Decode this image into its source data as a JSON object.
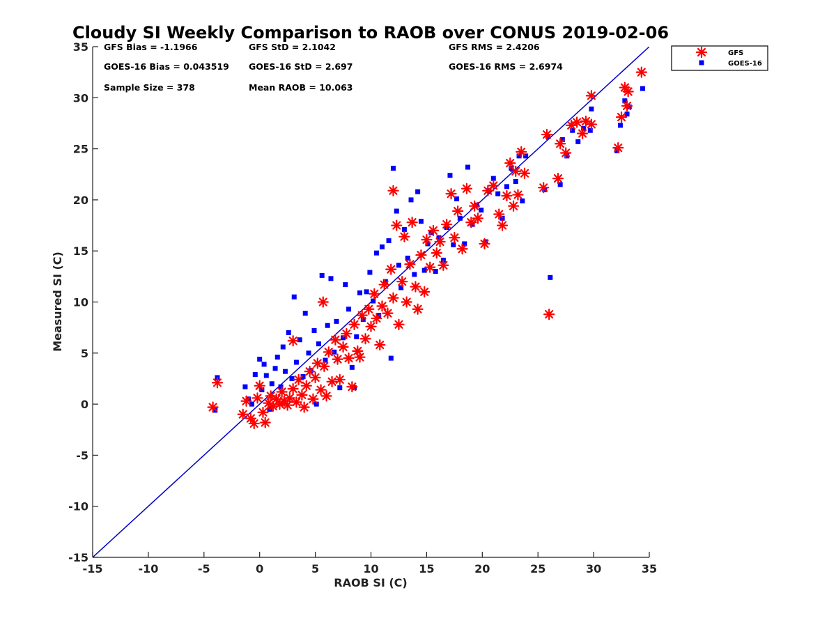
{
  "chart_data": {
    "type": "scatter",
    "title": "Cloudy SI Weekly Comparison to RAOB over CONUS 2019-02-06",
    "xlabel": "RAOB SI (C)",
    "ylabel": "Measured SI (C)",
    "xlim": [
      -15,
      35
    ],
    "ylim": [
      -15,
      35
    ],
    "xticks": [
      -15,
      -10,
      -5,
      0,
      5,
      10,
      15,
      20,
      25,
      30,
      35
    ],
    "yticks": [
      -15,
      -10,
      -5,
      0,
      5,
      10,
      15,
      20,
      25,
      30,
      35
    ],
    "grid": false,
    "legend_position": "outside-top-right",
    "reference_line": {
      "x": [
        -15,
        35
      ],
      "y": [
        -15,
        35
      ],
      "color": "#0000cc"
    },
    "stats": [
      "GFS Bias = -1.1966",
      "GFS StD = 2.1042",
      "GFS RMS = 2.4206",
      "GOES-16 Bias = 0.043519",
      "GOES-16 StD = 2.697",
      "GOES-16 RMS = 2.6974",
      "Sample Size = 378",
      "Mean RAOB = 10.063"
    ],
    "series": [
      {
        "name": "GFS",
        "color": "#ff0000",
        "marker": "asterisk",
        "points": [
          [
            -4.2,
            -0.3
          ],
          [
            -3.8,
            2.1
          ],
          [
            -1.5,
            -1.0
          ],
          [
            -1.2,
            0.3
          ],
          [
            -0.8,
            -1.4
          ],
          [
            -0.5,
            -1.9
          ],
          [
            -0.2,
            0.6
          ],
          [
            0.0,
            1.8
          ],
          [
            0.3,
            -0.8
          ],
          [
            0.5,
            -1.8
          ],
          [
            0.8,
            0.1
          ],
          [
            1.0,
            0.8
          ],
          [
            1.2,
            -0.2
          ],
          [
            1.5,
            0.5
          ],
          [
            1.8,
            0.0
          ],
          [
            2.0,
            1.2
          ],
          [
            2.2,
            0.3
          ],
          [
            2.5,
            -0.1
          ],
          [
            2.7,
            0.6
          ],
          [
            3.0,
            1.5
          ],
          [
            3.0,
            6.2
          ],
          [
            3.3,
            0.2
          ],
          [
            3.5,
            2.4
          ],
          [
            3.8,
            0.9
          ],
          [
            4.0,
            -0.3
          ],
          [
            4.2,
            1.8
          ],
          [
            4.5,
            3.2
          ],
          [
            4.8,
            0.5
          ],
          [
            5.0,
            2.6
          ],
          [
            5.2,
            4.0
          ],
          [
            5.5,
            1.4
          ],
          [
            5.7,
            10.0
          ],
          [
            5.8,
            3.7
          ],
          [
            6.0,
            0.8
          ],
          [
            6.2,
            5.1
          ],
          [
            6.5,
            2.2
          ],
          [
            6.8,
            6.3
          ],
          [
            7.0,
            4.4
          ],
          [
            7.2,
            2.4
          ],
          [
            7.5,
            5.6
          ],
          [
            7.8,
            6.9
          ],
          [
            8.0,
            4.5
          ],
          [
            8.3,
            1.7
          ],
          [
            8.5,
            7.8
          ],
          [
            8.8,
            5.2
          ],
          [
            9.0,
            4.6
          ],
          [
            9.2,
            8.7
          ],
          [
            9.5,
            6.4
          ],
          [
            9.8,
            9.3
          ],
          [
            10.0,
            7.6
          ],
          [
            10.3,
            10.8
          ],
          [
            10.5,
            8.4
          ],
          [
            10.8,
            5.8
          ],
          [
            11.0,
            9.6
          ],
          [
            11.2,
            11.7
          ],
          [
            11.5,
            8.9
          ],
          [
            11.8,
            13.2
          ],
          [
            12.0,
            20.9
          ],
          [
            12.0,
            10.4
          ],
          [
            12.3,
            17.5
          ],
          [
            12.5,
            7.8
          ],
          [
            12.8,
            12.0
          ],
          [
            13.0,
            16.4
          ],
          [
            13.2,
            10.0
          ],
          [
            13.5,
            13.7
          ],
          [
            13.7,
            17.8
          ],
          [
            14.0,
            11.5
          ],
          [
            14.2,
            9.3
          ],
          [
            14.5,
            14.6
          ],
          [
            14.8,
            11.0
          ],
          [
            15.0,
            16.1
          ],
          [
            15.3,
            13.4
          ],
          [
            15.6,
            17.0
          ],
          [
            15.9,
            14.8
          ],
          [
            16.2,
            15.9
          ],
          [
            16.5,
            13.6
          ],
          [
            16.8,
            17.6
          ],
          [
            17.2,
            20.6
          ],
          [
            17.5,
            16.3
          ],
          [
            17.8,
            18.9
          ],
          [
            18.2,
            15.2
          ],
          [
            18.6,
            21.1
          ],
          [
            19.0,
            17.8
          ],
          [
            19.3,
            19.4
          ],
          [
            19.6,
            18.2
          ],
          [
            20.2,
            15.7
          ],
          [
            20.5,
            20.9
          ],
          [
            21.0,
            21.4
          ],
          [
            21.5,
            18.6
          ],
          [
            21.8,
            17.5
          ],
          [
            22.2,
            20.4
          ],
          [
            22.5,
            23.6
          ],
          [
            22.8,
            19.4
          ],
          [
            23.0,
            22.8
          ],
          [
            23.2,
            20.5
          ],
          [
            23.5,
            24.7
          ],
          [
            23.8,
            22.6
          ],
          [
            25.5,
            21.2
          ],
          [
            25.8,
            26.4
          ],
          [
            26.0,
            8.8
          ],
          [
            26.8,
            22.1
          ],
          [
            27.0,
            25.5
          ],
          [
            27.5,
            24.6
          ],
          [
            28.0,
            27.3
          ],
          [
            28.5,
            27.6
          ],
          [
            29.0,
            26.5
          ],
          [
            29.3,
            27.7
          ],
          [
            29.8,
            27.4
          ],
          [
            29.8,
            30.2
          ],
          [
            32.2,
            25.1
          ],
          [
            32.5,
            28.1
          ],
          [
            32.8,
            31.0
          ],
          [
            33.0,
            29.2
          ],
          [
            33.1,
            30.6
          ],
          [
            34.3,
            32.5
          ]
        ]
      },
      {
        "name": "GOES-16",
        "color": "#0000ff",
        "marker": "square",
        "points": [
          [
            -4.0,
            -0.6
          ],
          [
            -3.8,
            2.6
          ],
          [
            -1.3,
            1.7
          ],
          [
            -1.0,
            0.5
          ],
          [
            -0.7,
            0.0
          ],
          [
            -0.4,
            2.9
          ],
          [
            0.0,
            4.4
          ],
          [
            0.2,
            1.4
          ],
          [
            0.4,
            3.9
          ],
          [
            0.6,
            2.8
          ],
          [
            0.9,
            -0.5
          ],
          [
            1.1,
            2.0
          ],
          [
            1.4,
            3.5
          ],
          [
            1.6,
            4.6
          ],
          [
            1.9,
            1.7
          ],
          [
            2.1,
            5.6
          ],
          [
            2.3,
            3.2
          ],
          [
            2.6,
            7.0
          ],
          [
            2.9,
            2.5
          ],
          [
            3.1,
            10.5
          ],
          [
            3.3,
            4.1
          ],
          [
            3.6,
            6.3
          ],
          [
            3.9,
            2.7
          ],
          [
            4.1,
            8.9
          ],
          [
            4.4,
            5.0
          ],
          [
            4.6,
            3.3
          ],
          [
            4.9,
            7.2
          ],
          [
            5.1,
            0.0
          ],
          [
            5.3,
            5.9
          ],
          [
            5.6,
            12.6
          ],
          [
            5.9,
            4.3
          ],
          [
            6.1,
            7.7
          ],
          [
            6.4,
            12.3
          ],
          [
            6.7,
            5.1
          ],
          [
            6.9,
            8.1
          ],
          [
            7.2,
            1.6
          ],
          [
            7.5,
            6.5
          ],
          [
            7.7,
            11.7
          ],
          [
            8.0,
            9.3
          ],
          [
            8.3,
            3.6
          ],
          [
            8.5,
            1.6
          ],
          [
            8.7,
            6.6
          ],
          [
            9.0,
            10.9
          ],
          [
            9.3,
            8.3
          ],
          [
            9.6,
            11.0
          ],
          [
            9.9,
            12.9
          ],
          [
            10.2,
            10.1
          ],
          [
            10.5,
            14.8
          ],
          [
            10.7,
            8.7
          ],
          [
            11.0,
            15.4
          ],
          [
            11.3,
            12.0
          ],
          [
            11.6,
            16.0
          ],
          [
            11.8,
            4.5
          ],
          [
            12.0,
            23.1
          ],
          [
            12.3,
            18.9
          ],
          [
            12.5,
            13.6
          ],
          [
            12.7,
            11.4
          ],
          [
            13.0,
            17.1
          ],
          [
            13.3,
            14.3
          ],
          [
            13.6,
            20.0
          ],
          [
            13.9,
            12.7
          ],
          [
            14.2,
            20.8
          ],
          [
            14.5,
            17.9
          ],
          [
            14.8,
            13.1
          ],
          [
            15.1,
            15.7
          ],
          [
            15.4,
            16.8
          ],
          [
            15.8,
            13.0
          ],
          [
            16.1,
            16.3
          ],
          [
            16.5,
            14.1
          ],
          [
            16.8,
            17.3
          ],
          [
            17.1,
            22.4
          ],
          [
            17.4,
            15.6
          ],
          [
            17.7,
            20.1
          ],
          [
            18.0,
            18.2
          ],
          [
            18.4,
            15.7
          ],
          [
            18.7,
            23.2
          ],
          [
            19.1,
            17.6
          ],
          [
            19.5,
            19.5
          ],
          [
            19.9,
            19.0
          ],
          [
            20.3,
            15.9
          ],
          [
            20.6,
            20.9
          ],
          [
            21.0,
            22.1
          ],
          [
            21.4,
            20.6
          ],
          [
            21.8,
            18.2
          ],
          [
            22.2,
            21.3
          ],
          [
            22.6,
            23.1
          ],
          [
            23.0,
            21.8
          ],
          [
            23.3,
            24.3
          ],
          [
            23.6,
            19.9
          ],
          [
            23.9,
            24.3
          ],
          [
            25.6,
            21.0
          ],
          [
            25.9,
            26.2
          ],
          [
            26.1,
            12.4
          ],
          [
            27.0,
            21.5
          ],
          [
            27.2,
            25.9
          ],
          [
            27.6,
            24.3
          ],
          [
            28.1,
            26.8
          ],
          [
            28.6,
            25.7
          ],
          [
            29.1,
            27.0
          ],
          [
            29.7,
            26.8
          ],
          [
            29.8,
            28.9
          ],
          [
            32.1,
            24.8
          ],
          [
            32.4,
            27.3
          ],
          [
            32.8,
            29.7
          ],
          [
            33.0,
            28.4
          ],
          [
            33.2,
            29.1
          ],
          [
            34.4,
            30.9
          ]
        ]
      }
    ]
  }
}
